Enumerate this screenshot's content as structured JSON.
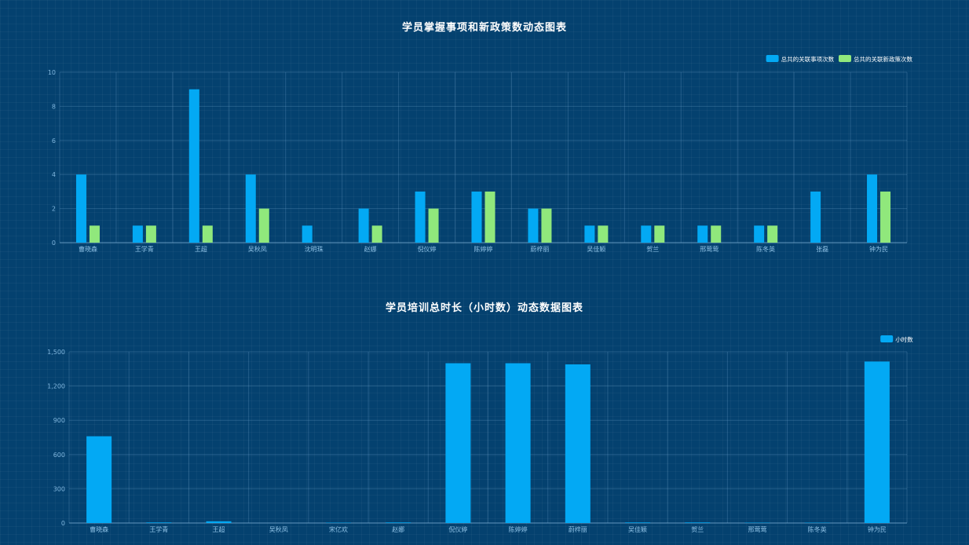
{
  "chart_data": [
    {
      "type": "bar",
      "title": "学员掌握事项和新政策数动态图表",
      "categories": [
        "曹晓森",
        "王学青",
        "王超",
        "吴秋凤",
        "沈明珠",
        "赵娜",
        "倪仪婷",
        "陈婷婷",
        "蔚梓丽",
        "吴佳颖",
        "贺兰",
        "邢莺莺",
        "陈冬英",
        "张磊",
        "钟为民"
      ],
      "series": [
        {
          "name": "总共的关联事项次数",
          "color": "#03a9f4",
          "values": [
            4,
            1,
            9,
            4,
            1,
            2,
            3,
            3,
            2,
            1,
            1,
            1,
            1,
            3,
            4
          ]
        },
        {
          "name": "总共的关联新政策次数",
          "color": "#90e87c",
          "values": [
            1,
            1,
            1,
            2,
            0,
            1,
            2,
            3,
            2,
            1,
            1,
            1,
            1,
            0,
            3
          ]
        }
      ],
      "yticks": [
        "0",
        "2",
        "4",
        "6",
        "8",
        "10"
      ],
      "ylim": [
        0,
        10
      ],
      "legend": "top-right",
      "grid": true
    },
    {
      "type": "bar",
      "title": "学员培训总时长（小时数）动态数据图表",
      "categories": [
        "曹晓森",
        "王学青",
        "王超",
        "吴秋凤",
        "宋亿欢",
        "赵娜",
        "倪仪婷",
        "陈婷婷",
        "蔚梓丽",
        "吴佳颖",
        "贺兰",
        "邢莺莺",
        "陈冬英",
        "钟为民"
      ],
      "series": [
        {
          "name": "小时数",
          "color": "#03a9f4",
          "values": [
            760,
            5,
            15,
            0,
            3,
            5,
            1400,
            1400,
            1390,
            5,
            5,
            3,
            3,
            1415
          ]
        }
      ],
      "yticks": [
        "0",
        "300",
        "600",
        "900",
        "1,200",
        "1,500"
      ],
      "ylim": [
        0,
        1500
      ],
      "legend": "top-right",
      "grid": true
    }
  ]
}
